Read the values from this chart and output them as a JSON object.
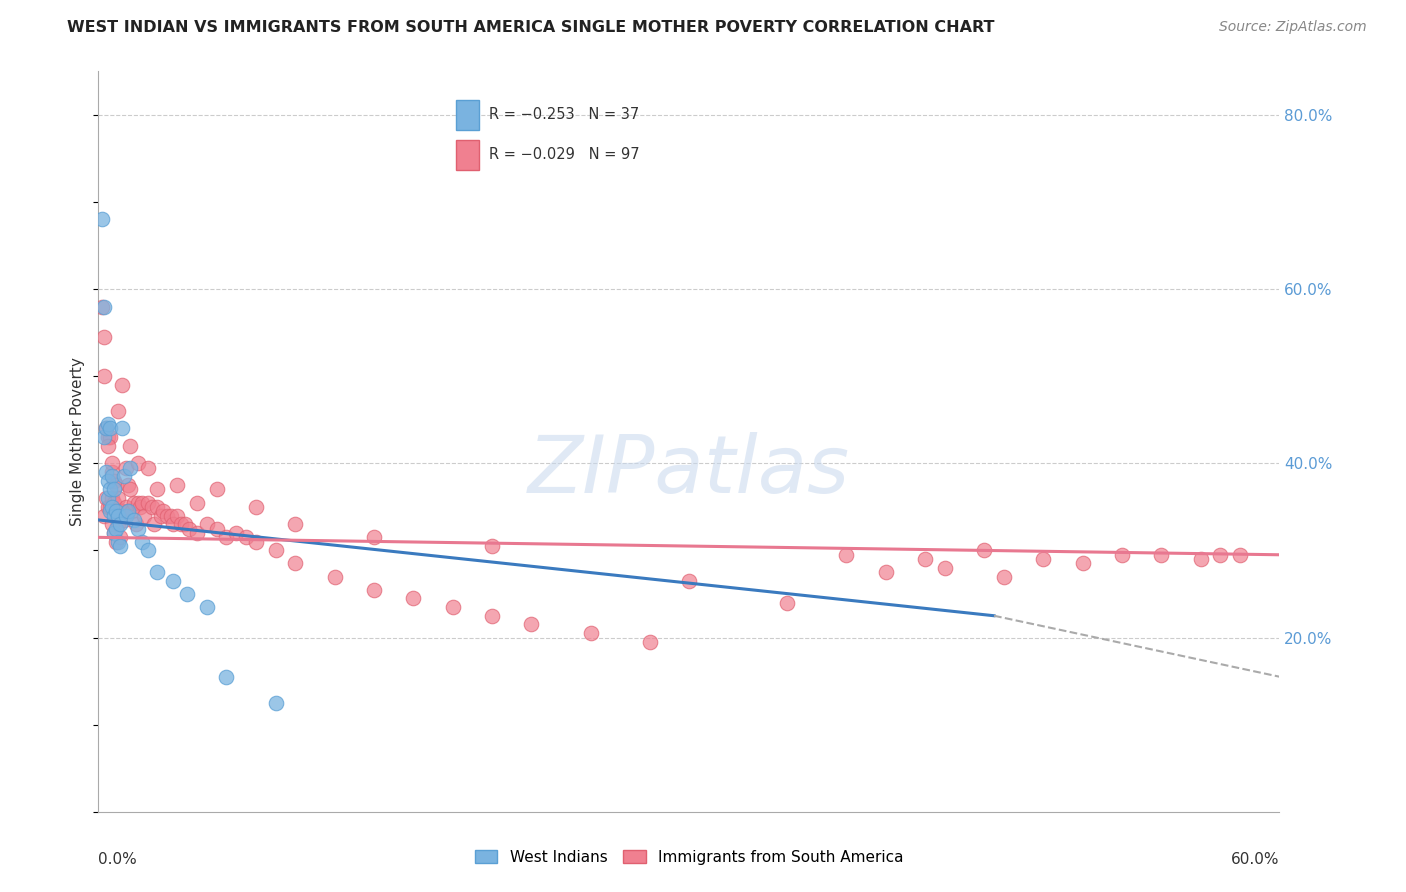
{
  "title": "WEST INDIAN VS IMMIGRANTS FROM SOUTH AMERICA SINGLE MOTHER POVERTY CORRELATION CHART",
  "source": "Source: ZipAtlas.com",
  "ylabel": "Single Mother Poverty",
  "west_indian_color": "#7ab3e0",
  "west_indian_edge": "#5a9fd4",
  "south_america_color": "#f08090",
  "south_america_edge": "#e06070",
  "background_color": "#ffffff",
  "grid_color": "#cccccc",
  "watermark": "ZIPatlas",
  "xlim": [
    0.0,
    0.6
  ],
  "ylim": [
    0.0,
    0.85
  ],
  "right_ytick_vals": [
    0.2,
    0.4,
    0.6,
    0.8
  ],
  "trend_wi_x0": 0.0,
  "trend_wi_x1": 0.455,
  "trend_wi_y0": 0.335,
  "trend_wi_y1": 0.225,
  "trend_wi_ext_x0": 0.455,
  "trend_wi_ext_x1": 0.6,
  "trend_wi_ext_y0": 0.225,
  "trend_wi_ext_y1": 0.155,
  "trend_sa_x0": 0.0,
  "trend_sa_x1": 0.6,
  "trend_sa_y0": 0.315,
  "trend_sa_y1": 0.295,
  "wi_scatter_x": [
    0.002,
    0.003,
    0.003,
    0.004,
    0.004,
    0.005,
    0.005,
    0.005,
    0.006,
    0.006,
    0.006,
    0.007,
    0.007,
    0.008,
    0.008,
    0.008,
    0.009,
    0.009,
    0.01,
    0.01,
    0.011,
    0.011,
    0.012,
    0.013,
    0.014,
    0.015,
    0.016,
    0.018,
    0.02,
    0.022,
    0.025,
    0.03,
    0.038,
    0.045,
    0.055,
    0.065,
    0.09
  ],
  "wi_scatter_y": [
    0.68,
    0.58,
    0.43,
    0.44,
    0.39,
    0.445,
    0.38,
    0.36,
    0.44,
    0.37,
    0.345,
    0.385,
    0.35,
    0.37,
    0.34,
    0.32,
    0.345,
    0.325,
    0.34,
    0.31,
    0.33,
    0.305,
    0.44,
    0.385,
    0.34,
    0.345,
    0.395,
    0.335,
    0.325,
    0.31,
    0.3,
    0.275,
    0.265,
    0.25,
    0.235,
    0.155,
    0.125
  ],
  "sa_scatter_x": [
    0.002,
    0.003,
    0.003,
    0.004,
    0.004,
    0.005,
    0.005,
    0.006,
    0.006,
    0.007,
    0.007,
    0.007,
    0.008,
    0.008,
    0.008,
    0.009,
    0.009,
    0.009,
    0.01,
    0.01,
    0.011,
    0.011,
    0.012,
    0.013,
    0.014,
    0.014,
    0.015,
    0.015,
    0.016,
    0.017,
    0.018,
    0.019,
    0.02,
    0.021,
    0.022,
    0.023,
    0.025,
    0.027,
    0.028,
    0.03,
    0.032,
    0.033,
    0.035,
    0.037,
    0.038,
    0.04,
    0.042,
    0.044,
    0.046,
    0.05,
    0.055,
    0.06,
    0.065,
    0.07,
    0.075,
    0.08,
    0.09,
    0.1,
    0.12,
    0.14,
    0.16,
    0.18,
    0.2,
    0.22,
    0.25,
    0.28,
    0.3,
    0.35,
    0.38,
    0.4,
    0.42,
    0.43,
    0.45,
    0.46,
    0.48,
    0.5,
    0.52,
    0.54,
    0.56,
    0.57,
    0.58,
    0.003,
    0.005,
    0.007,
    0.01,
    0.012,
    0.016,
    0.02,
    0.025,
    0.03,
    0.04,
    0.05,
    0.06,
    0.08,
    0.1,
    0.14,
    0.2
  ],
  "sa_scatter_y": [
    0.58,
    0.5,
    0.34,
    0.44,
    0.36,
    0.43,
    0.35,
    0.43,
    0.35,
    0.39,
    0.36,
    0.33,
    0.38,
    0.355,
    0.32,
    0.375,
    0.345,
    0.31,
    0.36,
    0.33,
    0.345,
    0.315,
    0.345,
    0.335,
    0.395,
    0.35,
    0.375,
    0.345,
    0.37,
    0.345,
    0.355,
    0.33,
    0.355,
    0.35,
    0.355,
    0.34,
    0.355,
    0.35,
    0.33,
    0.35,
    0.34,
    0.345,
    0.34,
    0.34,
    0.33,
    0.34,
    0.33,
    0.33,
    0.325,
    0.32,
    0.33,
    0.325,
    0.315,
    0.32,
    0.315,
    0.31,
    0.3,
    0.285,
    0.27,
    0.255,
    0.245,
    0.235,
    0.225,
    0.215,
    0.205,
    0.195,
    0.265,
    0.24,
    0.295,
    0.275,
    0.29,
    0.28,
    0.3,
    0.27,
    0.29,
    0.285,
    0.295,
    0.295,
    0.29,
    0.295,
    0.295,
    0.545,
    0.42,
    0.4,
    0.46,
    0.49,
    0.42,
    0.4,
    0.395,
    0.37,
    0.375,
    0.355,
    0.37,
    0.35,
    0.33,
    0.315,
    0.305
  ]
}
